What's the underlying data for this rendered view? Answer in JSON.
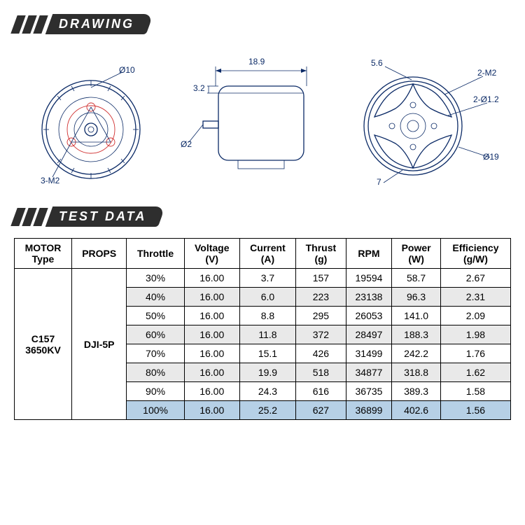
{
  "headers": {
    "drawing": "DRAWING",
    "test_data": "TEST DATA"
  },
  "drawing": {
    "top_view": {
      "dims": {
        "d10": "Ø10",
        "m2_3": "3-M2"
      }
    },
    "side_view": {
      "dims": {
        "w18_9": "18.9",
        "w3_2": "3.2",
        "d2": "Ø2"
      }
    },
    "bottom_view": {
      "dims": {
        "w5_6": "5.6",
        "m2_2": "2-M2",
        "d1_2": "2-Ø1.2",
        "d19": "Ø19",
        "w7": "7"
      }
    }
  },
  "table": {
    "columns": [
      {
        "l1": "MOTOR",
        "l2": "Type"
      },
      {
        "l1": "PROPS",
        "l2": ""
      },
      {
        "l1": "Throttle",
        "l2": ""
      },
      {
        "l1": "Voltage",
        "l2": "(V)"
      },
      {
        "l1": "Current",
        "l2": "(A)"
      },
      {
        "l1": "Thrust",
        "l2": "(g)"
      },
      {
        "l1": "RPM",
        "l2": ""
      },
      {
        "l1": "Power",
        "l2": "(W)"
      },
      {
        "l1": "Efficiency",
        "l2": "(g/W)"
      }
    ],
    "motor_type_l1": "C157",
    "motor_type_l2": "3650KV",
    "props": "DJI-5P",
    "rows": [
      {
        "throttle": "30%",
        "voltage": "16.00",
        "current": "3.7",
        "thrust": "157",
        "rpm": "19594",
        "power": "58.7",
        "eff": "2.67",
        "style": "plain"
      },
      {
        "throttle": "40%",
        "voltage": "16.00",
        "current": "6.0",
        "thrust": "223",
        "rpm": "23138",
        "power": "96.3",
        "eff": "2.31",
        "style": "alt"
      },
      {
        "throttle": "50%",
        "voltage": "16.00",
        "current": "8.8",
        "thrust": "295",
        "rpm": "26053",
        "power": "141.0",
        "eff": "2.09",
        "style": "plain"
      },
      {
        "throttle": "60%",
        "voltage": "16.00",
        "current": "11.8",
        "thrust": "372",
        "rpm": "28497",
        "power": "188.3",
        "eff": "1.98",
        "style": "alt"
      },
      {
        "throttle": "70%",
        "voltage": "16.00",
        "current": "15.1",
        "thrust": "426",
        "rpm": "31499",
        "power": "242.2",
        "eff": "1.76",
        "style": "plain"
      },
      {
        "throttle": "80%",
        "voltage": "16.00",
        "current": "19.9",
        "thrust": "518",
        "rpm": "34877",
        "power": "318.8",
        "eff": "1.62",
        "style": "alt"
      },
      {
        "throttle": "90%",
        "voltage": "16.00",
        "current": "24.3",
        "thrust": "616",
        "rpm": "36735",
        "power": "389.3",
        "eff": "1.58",
        "style": "plain"
      },
      {
        "throttle": "100%",
        "voltage": "16.00",
        "current": "25.2",
        "thrust": "627",
        "rpm": "36899",
        "power": "402.6",
        "eff": "1.56",
        "style": "hl"
      }
    ]
  }
}
